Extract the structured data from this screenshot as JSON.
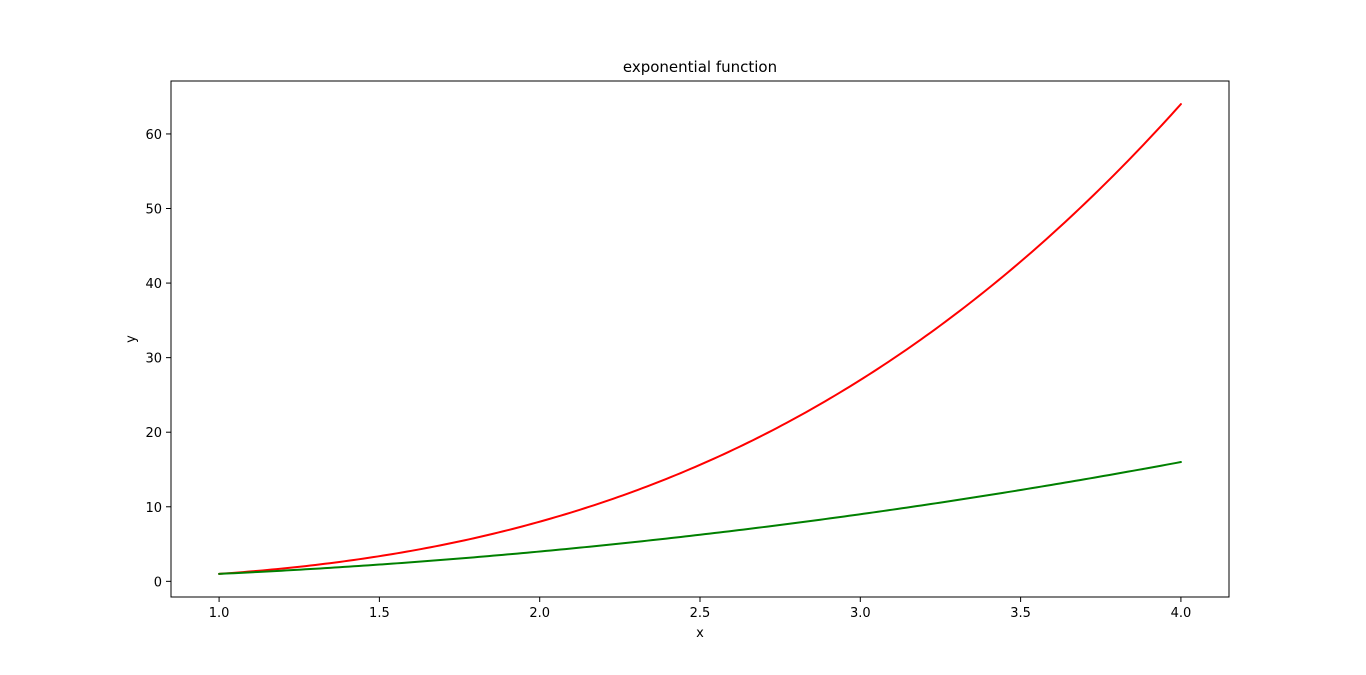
{
  "chart_data": {
    "type": "line",
    "title": "exponential function",
    "xlabel": "x",
    "ylabel": "y",
    "xlim": [
      0.85,
      4.15
    ],
    "ylim": [
      -2.1,
      67.1
    ],
    "xticks": [
      1.0,
      1.5,
      2.0,
      2.5,
      3.0,
      3.5,
      4.0
    ],
    "xtick_labels": [
      "1.0",
      "1.5",
      "2.0",
      "2.5",
      "3.0",
      "3.5",
      "4.0"
    ],
    "yticks": [
      0,
      10,
      20,
      30,
      40,
      50,
      60
    ],
    "ytick_labels": [
      "0",
      "10",
      "20",
      "30",
      "40",
      "50",
      "60"
    ],
    "grid": false,
    "x_range": [
      1.0,
      4.0
    ],
    "series": [
      {
        "color": "#ff0000",
        "x": [
          1.0,
          1.25,
          1.5,
          1.75,
          2.0,
          2.25,
          2.5,
          2.75,
          3.0,
          3.25,
          3.5,
          3.75,
          4.0
        ],
        "values": [
          1.0,
          1.95,
          3.38,
          5.36,
          8.0,
          11.39,
          15.63,
          20.8,
          27.0,
          34.33,
          42.88,
          52.73,
          64.0
        ]
      },
      {
        "color": "#008000",
        "x": [
          1.0,
          1.25,
          1.5,
          1.75,
          2.0,
          2.25,
          2.5,
          2.75,
          3.0,
          3.25,
          3.5,
          3.75,
          4.0
        ],
        "values": [
          1.0,
          1.56,
          2.25,
          3.06,
          4.0,
          5.06,
          6.25,
          7.56,
          9.0,
          10.56,
          12.25,
          14.06,
          16.0
        ]
      }
    ]
  }
}
